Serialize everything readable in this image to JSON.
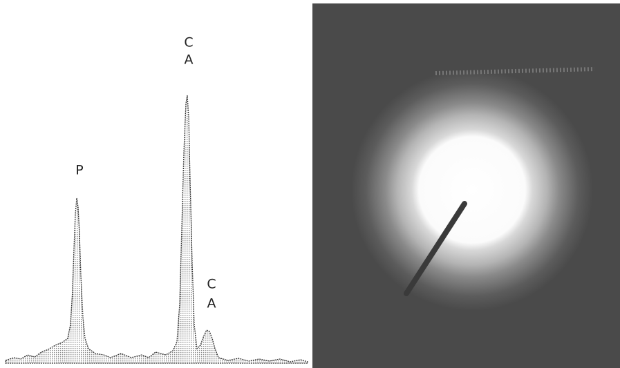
{
  "peaks": [
    {
      "label_lines": [
        "P"
      ]
    },
    {
      "label_lines": [
        "C",
        "A"
      ]
    },
    {
      "label_lines": [
        "C",
        "A"
      ]
    }
  ]
}
